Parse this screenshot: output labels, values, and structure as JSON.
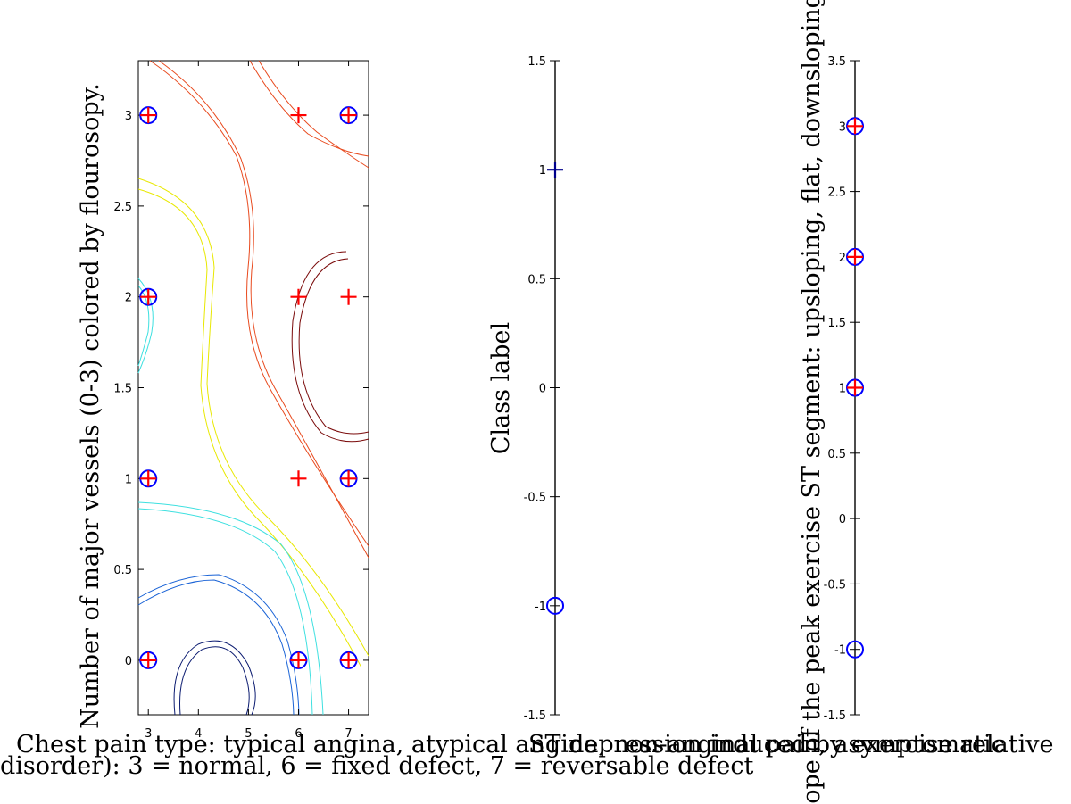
{
  "chart_data": [
    {
      "type": "scatter",
      "xlabel": "Chest pain type: typical angina, atypical angina, non-anginal pain, asymptomatic",
      "xlabel2": "disorder): 3 = normal, 6 = fixed defect, 7 = reversable defect",
      "ylabel": "Number of major vessels (0-3) colored by flourosopy.",
      "xlim": [
        2.8,
        7.4
      ],
      "ylim": [
        -0.3,
        3.3
      ],
      "xticks": [
        "3",
        "4",
        "5",
        "6",
        "7"
      ],
      "yticks": [
        "0",
        "0.5",
        "1",
        "1.5",
        "2",
        "2.5",
        "3"
      ],
      "grid": false,
      "contours": true,
      "series": [
        {
          "marker": "circle",
          "color": "#0000ff",
          "points": [
            [
              3,
              0
            ],
            [
              6,
              0
            ],
            [
              7,
              0
            ],
            [
              3,
              1
            ],
            [
              7,
              1
            ],
            [
              3,
              2
            ],
            [
              3,
              3
            ],
            [
              7,
              3
            ]
          ]
        },
        {
          "marker": "plus",
          "color": "#ff0000",
          "points": [
            [
              3,
              0
            ],
            [
              6,
              0
            ],
            [
              7,
              0
            ],
            [
              3,
              1
            ],
            [
              6,
              1
            ],
            [
              7,
              1
            ],
            [
              3,
              2
            ],
            [
              6,
              2
            ],
            [
              7,
              2
            ],
            [
              3,
              3
            ],
            [
              6,
              3
            ],
            [
              7,
              3
            ]
          ]
        }
      ]
    },
    {
      "type": "scatter",
      "xlabel": "ST depression induced by exercise relative",
      "ylabel": "Class label",
      "ylim": [
        -1.5,
        1.5
      ],
      "yticks": [
        "-1.5",
        "-1",
        "-0.5",
        "0",
        "0.5",
        "1",
        "1.5"
      ],
      "series": [
        {
          "marker": "circle",
          "color": "#0000ff",
          "points": [
            [
              0,
              -1
            ]
          ]
        },
        {
          "marker": "plus",
          "color": "#00008b",
          "points": [
            [
              0,
              1
            ]
          ]
        }
      ]
    },
    {
      "type": "scatter",
      "xlabel": "",
      "ylabel": "Slope of the peak exercise ST segment: upsloping, flat, downsloping",
      "ylim": [
        -1.5,
        3.5
      ],
      "yticks": [
        "-1.5",
        "-1",
        "-0.5",
        "0",
        "0.5",
        "1",
        "1.5",
        "2",
        "2.5",
        "3",
        "3.5"
      ],
      "series": [
        {
          "marker": "circle",
          "color": "#0000ff",
          "points": [
            [
              0,
              -1
            ],
            [
              0,
              1
            ],
            [
              0,
              2
            ],
            [
              0,
              3
            ]
          ]
        },
        {
          "marker": "plus",
          "color": "#ff0000",
          "points": [
            [
              0,
              1
            ],
            [
              0,
              2
            ],
            [
              0,
              3
            ]
          ]
        }
      ]
    }
  ]
}
